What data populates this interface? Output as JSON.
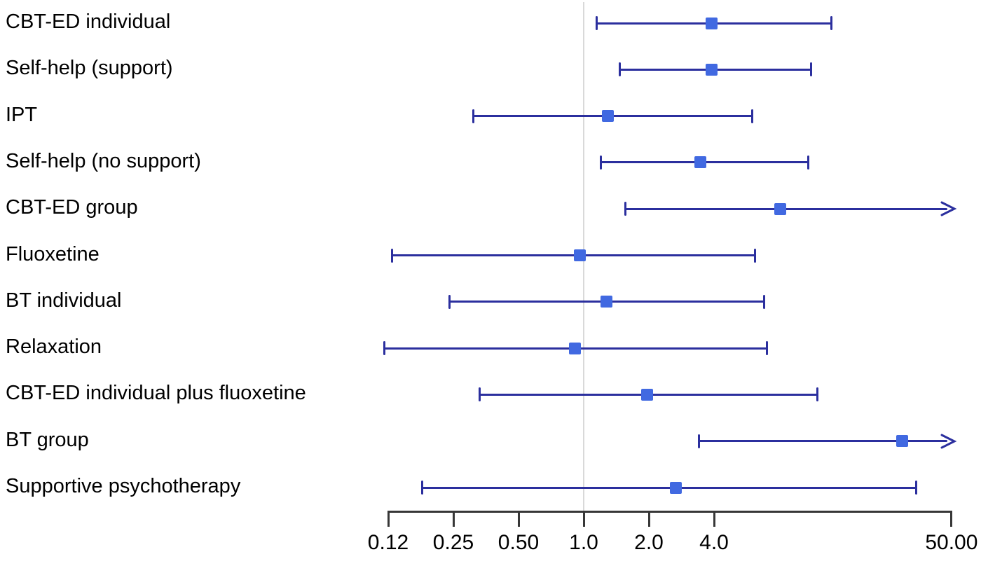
{
  "chart_data": {
    "type": "forest",
    "orientation": "horizontal",
    "title": "",
    "xlabel": "",
    "ylabel": "",
    "x_scale": "log2",
    "xlim": [
      0.125,
      50
    ],
    "reference_line": 1.0,
    "grid": false,
    "legend": "none",
    "marker": "square",
    "x_ticks": [
      {
        "label": "0.12",
        "value": 0.125
      },
      {
        "label": "0.25",
        "value": 0.25
      },
      {
        "label": "0.50",
        "value": 0.5
      },
      {
        "label": "1.0",
        "value": 1.0
      },
      {
        "label": "2.0",
        "value": 2.0
      },
      {
        "label": "4.0",
        "value": 4.0
      },
      {
        "label": "50.00",
        "value": 50.0
      }
    ],
    "rows": [
      {
        "label": "CBT-ED individual",
        "estimate": 3.9,
        "ci_low": 1.15,
        "ci_high": 13.9,
        "arrow_high": false
      },
      {
        "label": "Self-help (support)",
        "estimate": 3.9,
        "ci_low": 1.47,
        "ci_high": 11.2,
        "arrow_high": false
      },
      {
        "label": "IPT",
        "estimate": 1.29,
        "ci_low": 0.31,
        "ci_high": 6.0,
        "arrow_high": false
      },
      {
        "label": "Self-help (no support)",
        "estimate": 3.47,
        "ci_low": 1.2,
        "ci_high": 10.9,
        "arrow_high": false
      },
      {
        "label": "CBT-ED group",
        "estimate": 8.1,
        "ci_low": 1.56,
        "ci_high": 50,
        "arrow_high": true
      },
      {
        "label": "Fluoxetine",
        "estimate": 0.96,
        "ci_low": 0.13,
        "ci_high": 6.2,
        "arrow_high": false
      },
      {
        "label": "BT individual",
        "estimate": 1.27,
        "ci_low": 0.24,
        "ci_high": 6.8,
        "arrow_high": false
      },
      {
        "label": "Relaxation",
        "estimate": 0.91,
        "ci_low": 0.12,
        "ci_high": 7.0,
        "arrow_high": false
      },
      {
        "label": "CBT-ED individual plus fluoxetine",
        "estimate": 1.96,
        "ci_low": 0.33,
        "ci_high": 12.0,
        "arrow_high": false
      },
      {
        "label": "BT group",
        "estimate": 29.5,
        "ci_low": 3.4,
        "ci_high": 50,
        "arrow_high": true
      },
      {
        "label": "Supportive psychotherapy",
        "estimate": 2.67,
        "ci_low": 0.18,
        "ci_high": 34.4,
        "arrow_high": false
      }
    ],
    "colors": {
      "ci_line": "#2b2f9e",
      "marker_fill": "#4169e1",
      "reference_line": "#d9d9d9",
      "axis": "#373737",
      "text": "#000000",
      "background": "#ffffff"
    }
  }
}
